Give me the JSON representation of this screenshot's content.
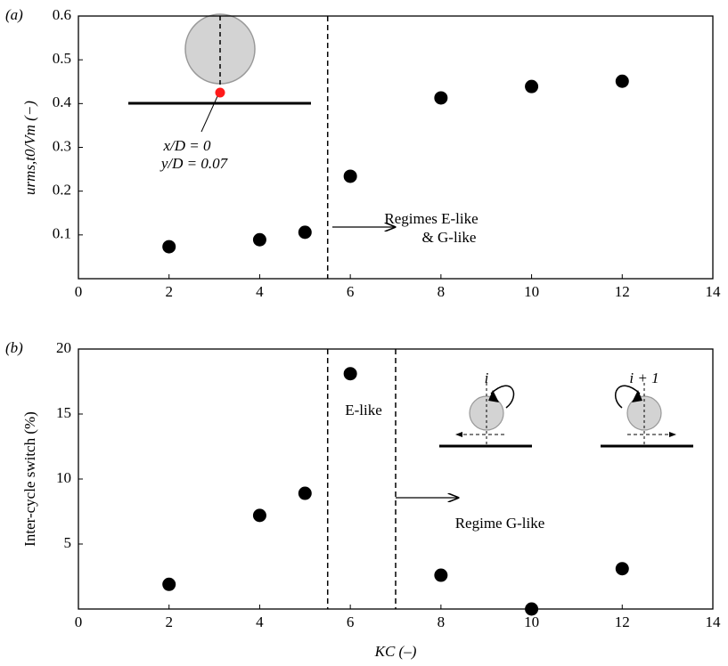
{
  "chart_data": [
    {
      "type": "scatter",
      "panel_label": "(a)",
      "ylabel": "urms,t0/Vm (−)",
      "x": [
        2,
        4,
        5,
        6,
        8,
        10,
        12
      ],
      "values": [
        0.073,
        0.089,
        0.106,
        0.234,
        0.413,
        0.439,
        0.451
      ],
      "color": "#000000",
      "xlim": [
        0,
        14
      ],
      "xticks": [
        0,
        2,
        4,
        6,
        8,
        10,
        12,
        14
      ],
      "ylim": [
        0,
        0.6
      ],
      "yticks": [
        0.1,
        0.2,
        0.3,
        0.4,
        0.5,
        0.6
      ],
      "vlines": [
        5.5
      ],
      "annotations": [
        "x/D = 0",
        "y/D = 0.07",
        "Regimes E-like",
        "& G-like"
      ]
    },
    {
      "type": "scatter",
      "panel_label": "(b)",
      "ylabel": "Inter-cycle switch (%)",
      "xlabel": "KC (–)",
      "x": [
        2,
        4,
        5,
        6,
        8,
        10,
        12
      ],
      "values": [
        1.9,
        7.2,
        8.9,
        18.1,
        2.6,
        0,
        3.1
      ],
      "color": "#000000",
      "xlim": [
        0,
        14
      ],
      "xticks": [
        0,
        2,
        4,
        6,
        8,
        10,
        12,
        14
      ],
      "ylim": [
        0,
        20
      ],
      "yticks": [
        5,
        10,
        15,
        20
      ],
      "vlines": [
        5.5,
        7
      ],
      "annotations": [
        "E-like",
        "Regime G-like",
        "i",
        "i + 1"
      ]
    }
  ]
}
